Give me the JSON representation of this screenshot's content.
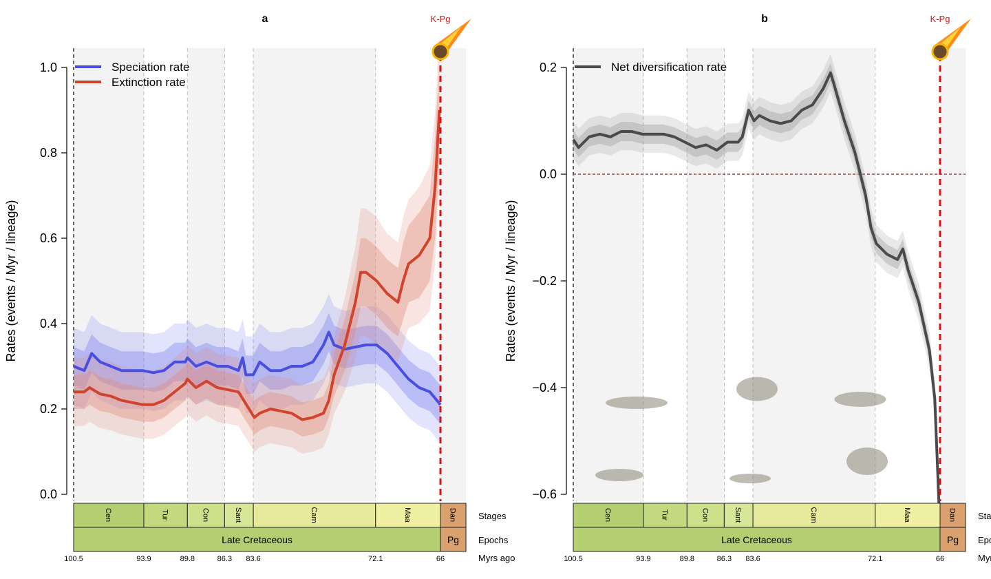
{
  "chart_data": [
    {
      "panel_label": "a",
      "type": "line",
      "ylabel": "Rates (events / Myr / lineage)",
      "ylim": [
        0,
        1.0
      ],
      "yticks": [
        "0.0",
        "0.2",
        "0.4",
        "0.6",
        "0.8",
        "1.0"
      ],
      "xlim_myr_ago": [
        100.5,
        63.6
      ],
      "event_label": "K-Pg",
      "event_x": 66,
      "legend_placement": "top-left",
      "series": [
        {
          "name": "Speciation rate",
          "color": "#4a4ee0",
          "band_color": "#7b80f0",
          "x": [
            100.5,
            99.5,
            98.8,
            98,
            97,
            96,
            95,
            94,
            93,
            92,
            91,
            90,
            89.8,
            89,
            88,
            87,
            86,
            85,
            84.6,
            84.3,
            83.6,
            83,
            82,
            81,
            80,
            79,
            78,
            77,
            76.5,
            76,
            75,
            74,
            73,
            72,
            71,
            70,
            69,
            68,
            67,
            66
          ],
          "y": [
            0.3,
            0.29,
            0.33,
            0.31,
            0.3,
            0.29,
            0.29,
            0.29,
            0.285,
            0.29,
            0.31,
            0.31,
            0.32,
            0.3,
            0.31,
            0.3,
            0.3,
            0.29,
            0.32,
            0.28,
            0.28,
            0.31,
            0.29,
            0.29,
            0.3,
            0.3,
            0.31,
            0.35,
            0.38,
            0.35,
            0.34,
            0.345,
            0.35,
            0.35,
            0.33,
            0.3,
            0.27,
            0.25,
            0.24,
            0.21
          ],
          "ci_inner_halfwidth": 0.045,
          "ci_outer_halfwidth": 0.09
        },
        {
          "name": "Extinction rate",
          "color": "#d0442e",
          "band_color": "#e08a78",
          "x": [
            100.5,
            99.5,
            99,
            98,
            97,
            96,
            95,
            94,
            93,
            92,
            91,
            90,
            89.8,
            89,
            88,
            87,
            86,
            85,
            84,
            83.5,
            83,
            82,
            81,
            80,
            79,
            78,
            77,
            76.5,
            76,
            75,
            74,
            73.5,
            73,
            72,
            71,
            70,
            69.5,
            69,
            68,
            67,
            66.5,
            66.1
          ],
          "y": [
            0.24,
            0.24,
            0.25,
            0.235,
            0.23,
            0.22,
            0.215,
            0.21,
            0.21,
            0.22,
            0.24,
            0.26,
            0.27,
            0.25,
            0.265,
            0.25,
            0.245,
            0.24,
            0.2,
            0.18,
            0.19,
            0.2,
            0.195,
            0.19,
            0.175,
            0.18,
            0.19,
            0.22,
            0.28,
            0.35,
            0.45,
            0.52,
            0.52,
            0.5,
            0.47,
            0.45,
            0.5,
            0.54,
            0.56,
            0.6,
            0.72,
            0.9
          ],
          "ci_inner_halfwidth": [
            0.04,
            0.04,
            0.04,
            0.04,
            0.04,
            0.04,
            0.04,
            0.04,
            0.04,
            0.04,
            0.04,
            0.04,
            0.04,
            0.04,
            0.04,
            0.04,
            0.04,
            0.04,
            0.04,
            0.04,
            0.04,
            0.04,
            0.04,
            0.04,
            0.04,
            0.04,
            0.04,
            0.04,
            0.05,
            0.06,
            0.07,
            0.08,
            0.08,
            0.08,
            0.08,
            0.08,
            0.09,
            0.09,
            0.1,
            0.1,
            0.12,
            0.12
          ],
          "ci_outer_halfwidth": [
            0.08,
            0.08,
            0.08,
            0.08,
            0.08,
            0.08,
            0.08,
            0.08,
            0.08,
            0.08,
            0.08,
            0.08,
            0.08,
            0.08,
            0.08,
            0.08,
            0.08,
            0.08,
            0.08,
            0.08,
            0.08,
            0.08,
            0.08,
            0.08,
            0.08,
            0.08,
            0.08,
            0.08,
            0.09,
            0.11,
            0.13,
            0.15,
            0.15,
            0.15,
            0.14,
            0.14,
            0.15,
            0.15,
            0.16,
            0.17,
            0.18,
            0.18
          ]
        }
      ]
    },
    {
      "panel_label": "b",
      "type": "line",
      "ylabel": "Rates (events / Myr / lineage)",
      "ylim": [
        -0.6,
        0.2
      ],
      "yticks": [
        "−0.6",
        "−0.4",
        "−0.2",
        "0.0",
        "0.2"
      ],
      "ytick_values": [
        -0.6,
        -0.4,
        -0.2,
        0.0,
        0.2
      ],
      "xlim_myr_ago": [
        100.5,
        63.6
      ],
      "event_label": "K-Pg",
      "event_x": 66,
      "zero_line_color": "#8b1a1a",
      "legend_placement": "top-left",
      "series": [
        {
          "name": "Net diversification rate",
          "color": "#4a4a4a",
          "band_color": "#9a9a9a",
          "x": [
            100.5,
            100,
            99,
            98,
            97,
            96,
            95,
            94,
            93,
            92,
            91,
            90,
            89,
            88,
            87,
            86,
            85,
            84.6,
            84,
            83.5,
            83,
            82,
            81,
            80,
            79,
            78,
            77,
            76.3,
            76,
            75,
            74,
            73.5,
            73,
            72.5,
            72,
            71,
            70,
            69.5,
            69,
            68,
            67,
            66.5,
            66.1
          ],
          "y": [
            0.065,
            0.05,
            0.07,
            0.075,
            0.07,
            0.08,
            0.08,
            0.075,
            0.075,
            0.075,
            0.07,
            0.06,
            0.05,
            0.055,
            0.045,
            0.06,
            0.06,
            0.07,
            0.12,
            0.1,
            0.11,
            0.1,
            0.095,
            0.1,
            0.12,
            0.13,
            0.16,
            0.19,
            0.17,
            0.1,
            0.04,
            0.0,
            -0.04,
            -0.1,
            -0.13,
            -0.15,
            -0.16,
            -0.14,
            -0.18,
            -0.24,
            -0.33,
            -0.42,
            -0.62
          ],
          "ci_inner_halfwidth": 0.018,
          "ci_outer_halfwidth": 0.035
        }
      ]
    }
  ],
  "timescale": {
    "row_labels": {
      "stages": "Stages",
      "epochs": "Epochs",
      "ages": "Myrs ago"
    },
    "stages": [
      {
        "name": "Cen",
        "start": 100.5,
        "end": 93.9,
        "color": "#b3cf72"
      },
      {
        "name": "Tur",
        "start": 93.9,
        "end": 89.8,
        "color": "#c2d97f"
      },
      {
        "name": "Con",
        "start": 89.8,
        "end": 86.3,
        "color": "#cde08a"
      },
      {
        "name": "Sant",
        "start": 86.3,
        "end": 83.6,
        "color": "#d8e69a"
      },
      {
        "name": "Cam",
        "start": 83.6,
        "end": 72.1,
        "color": "#e6ea9a"
      },
      {
        "name": "Maa",
        "start": 72.1,
        "end": 66,
        "color": "#f0f0a2"
      },
      {
        "name": "Dan",
        "start": 66,
        "end": 63.6,
        "color": "#d9a070"
      }
    ],
    "epochs": [
      {
        "name": "Late Cretaceous",
        "start": 100.5,
        "end": 66,
        "color": "#b3cf72"
      },
      {
        "name": "Pg",
        "start": 66,
        "end": 63.6,
        "color": "#d9a070"
      }
    ],
    "age_ticks": [
      "100.5",
      "93.9",
      "89.8",
      "86.3",
      "83.6",
      "72.1",
      "66"
    ],
    "age_values": [
      100.5,
      93.9,
      89.8,
      86.3,
      83.6,
      72.1,
      66
    ]
  }
}
